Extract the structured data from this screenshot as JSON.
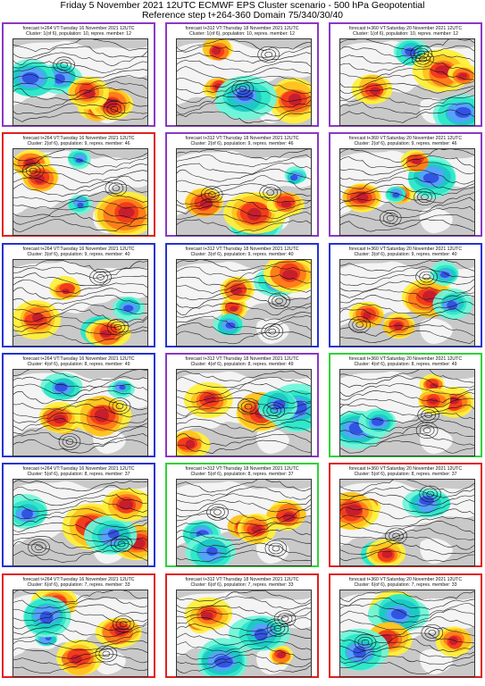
{
  "header": {
    "line1": "Friday 5 November 2021 12UTC ECMWF EPS Cluster scenario - 500 hPa Geopotential",
    "line2": "Reference step t+264-360 Domain 75/340/30/40"
  },
  "colors": {
    "purple": "#8a39c4",
    "red": "#e02020",
    "blue": "#2533d1",
    "green": "#31d13a"
  },
  "columns": [
    "forecast t+264 VT:Tuesday 16 November 2021 12UTC",
    "forecast t+312 VT:Thursday 18 November 2021 12UTC",
    "forecast t+360 VT:Saturday 20 November 2021 12UTC"
  ],
  "clusters": [
    "Cluster: 1(of 6), population: 10, repres. member: 12",
    "Cluster: 2(of 6), population: 9, repres. member: 46",
    "Cluster: 3(of 6), population: 9, repres. member: 40",
    "Cluster: 4(of 6), population: 8, repres. member: 49",
    "Cluster: 5(of 6), population: 8, repres. member: 37",
    "Cluster: 6(of 6), population: 7, repres. member: 33"
  ],
  "frames": [
    [
      "purple",
      "purple",
      "purple"
    ],
    [
      "red",
      "purple",
      "purple"
    ],
    [
      "blue",
      "blue",
      "blue"
    ],
    [
      "blue",
      "purple",
      "green"
    ],
    [
      "blue",
      "green",
      "red"
    ],
    [
      "red",
      "red",
      "red"
    ]
  ]
}
